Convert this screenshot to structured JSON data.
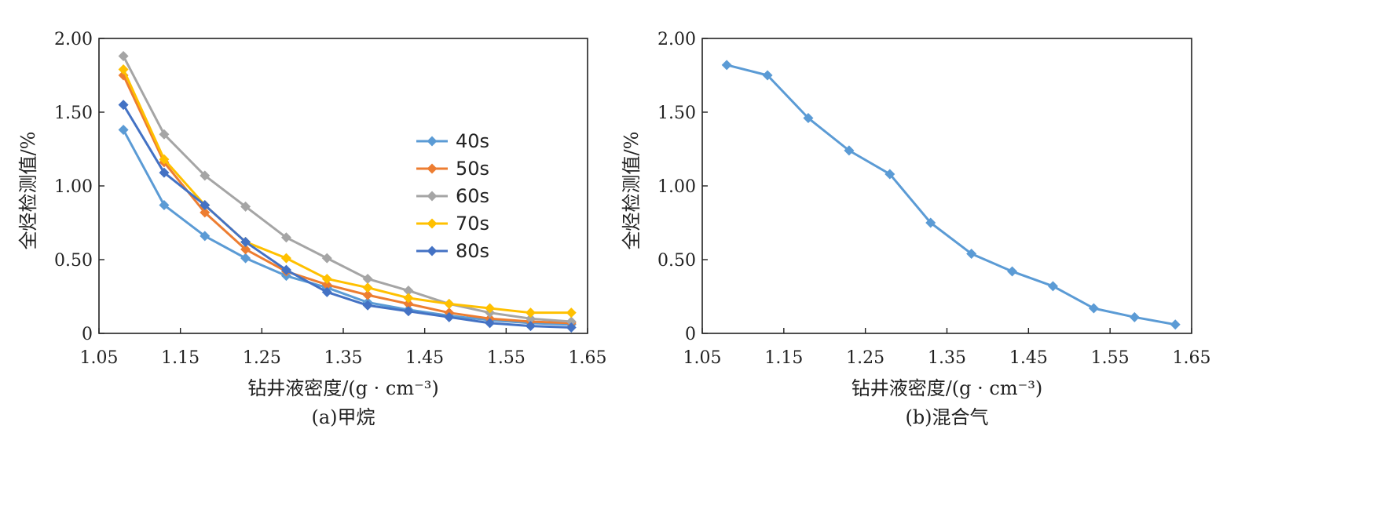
{
  "chart_data": [
    {
      "type": "line",
      "caption": "(a)甲烷",
      "xlabel": "钻井液密度/(g · cm⁻³)",
      "ylabel": "全烃检测值/%",
      "xlim": [
        1.05,
        1.65
      ],
      "ylim": [
        0,
        2.0
      ],
      "xticks": [
        "1.05",
        "1.15",
        "1.25",
        "1.35",
        "1.45",
        "1.55",
        "1.65"
      ],
      "xtick_values": [
        1.05,
        1.15,
        1.25,
        1.35,
        1.45,
        1.55,
        1.65
      ],
      "yticks": [
        "0",
        "0.50",
        "1.00",
        "1.50",
        "2.00"
      ],
      "ytick_values": [
        0,
        0.5,
        1.0,
        1.5,
        2.0
      ],
      "legend_position": "center-right",
      "x": [
        1.08,
        1.13,
        1.18,
        1.23,
        1.28,
        1.33,
        1.38,
        1.43,
        1.48,
        1.53,
        1.58,
        1.63
      ],
      "series": [
        {
          "name": "40s",
          "color": "#5b9bd5",
          "values": [
            1.38,
            0.87,
            0.66,
            0.51,
            0.39,
            0.31,
            0.21,
            0.16,
            0.12,
            0.09,
            0.07,
            0.06
          ]
        },
        {
          "name": "50s",
          "color": "#ed7d31",
          "values": [
            1.75,
            1.16,
            0.82,
            0.57,
            0.42,
            0.33,
            0.26,
            0.2,
            0.14,
            0.1,
            0.08,
            0.07
          ]
        },
        {
          "name": "60s",
          "color": "#a5a5a5",
          "values": [
            1.88,
            1.35,
            1.07,
            0.86,
            0.65,
            0.51,
            0.37,
            0.29,
            0.2,
            0.14,
            0.1,
            0.08
          ]
        },
        {
          "name": "70s",
          "color": "#ffc000",
          "values": [
            1.79,
            1.18,
            0.87,
            0.62,
            0.51,
            0.37,
            0.31,
            0.24,
            0.2,
            0.17,
            0.14,
            0.14
          ]
        },
        {
          "name": "80s",
          "color": "#4472c4",
          "values": [
            1.55,
            1.09,
            0.87,
            0.62,
            0.43,
            0.28,
            0.19,
            0.15,
            0.11,
            0.07,
            0.05,
            0.04
          ]
        }
      ]
    },
    {
      "type": "line",
      "caption": "(b)混合气",
      "xlabel": "钻井液密度/(g · cm⁻³)",
      "ylabel": "全烃检测值/%",
      "xlim": [
        1.05,
        1.65
      ],
      "ylim": [
        0,
        2.0
      ],
      "xticks": [
        "1.05",
        "1.15",
        "1.25",
        "1.35",
        "1.45",
        "1.55",
        "1.65"
      ],
      "xtick_values": [
        1.05,
        1.15,
        1.25,
        1.35,
        1.45,
        1.55,
        1.65
      ],
      "yticks": [
        "0",
        "0.50",
        "1.00",
        "1.50",
        "2.00"
      ],
      "ytick_values": [
        0,
        0.5,
        1.0,
        1.5,
        2.0
      ],
      "x": [
        1.08,
        1.13,
        1.18,
        1.23,
        1.28,
        1.33,
        1.38,
        1.43,
        1.48,
        1.53,
        1.58,
        1.63
      ],
      "series": [
        {
          "color": "#5b9bd5",
          "values": [
            1.82,
            1.75,
            1.46,
            1.24,
            1.08,
            0.75,
            0.54,
            0.42,
            0.32,
            0.17,
            0.11,
            0.06
          ]
        }
      ]
    }
  ]
}
